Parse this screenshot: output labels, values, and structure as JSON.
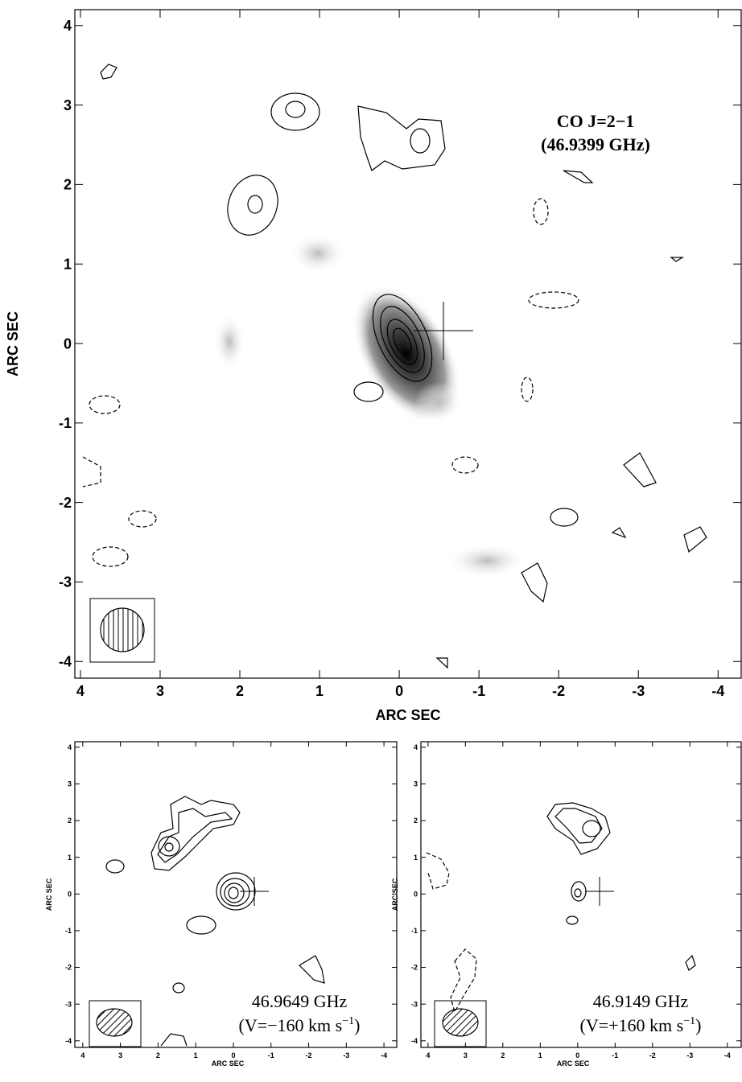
{
  "chart_data": [
    {
      "type": "contour",
      "x_label": "ARC SEC",
      "y_label": "ARC SEC",
      "xlim": [
        4.07,
        -4.29
      ],
      "ylim": [
        -4.21,
        4.2
      ],
      "xticks": [
        4,
        3,
        2,
        1,
        0,
        -1,
        -2,
        -3,
        -4
      ],
      "yticks": [
        4,
        3,
        2,
        1,
        0,
        -1,
        -2,
        -3,
        -4
      ],
      "annotation": [
        "CO J=2−1",
        "(46.9399 GHz)"
      ]
    },
    {
      "type": "contour",
      "x_label": "ARC SEC",
      "y_label": "ARC SEC",
      "xlim": [
        4.21,
        -4.34
      ],
      "ylim": [
        -4.18,
        4.15
      ],
      "xticks": [
        4,
        3,
        2,
        1,
        0,
        -1,
        -2,
        -3,
        -4
      ],
      "yticks": [
        4,
        3,
        2,
        1,
        0,
        -1,
        -2,
        -3,
        -4
      ],
      "annotation": [
        "46.9649 GHz"
      ],
      "velocity_label": {
        "text": "(V=−160 km s",
        "superscript": "−1",
        "suffix": ")"
      }
    },
    {
      "type": "contour",
      "x_label": "ARC SEC",
      "y_label": "ARC SEC",
      "xlim": [
        4.19,
        -4.37
      ],
      "ylim": [
        -4.18,
        4.15
      ],
      "xticks": [
        4,
        3,
        2,
        1,
        0,
        -1,
        -2,
        -3,
        -4
      ],
      "yticks": [
        4,
        3,
        2,
        1,
        0,
        -1,
        -2,
        -3,
        -4
      ],
      "annotation": [
        "46.9149 GHz"
      ],
      "velocity_label": {
        "text": "(V=+160 km s",
        "superscript": "−1",
        "suffix": ")"
      }
    }
  ]
}
